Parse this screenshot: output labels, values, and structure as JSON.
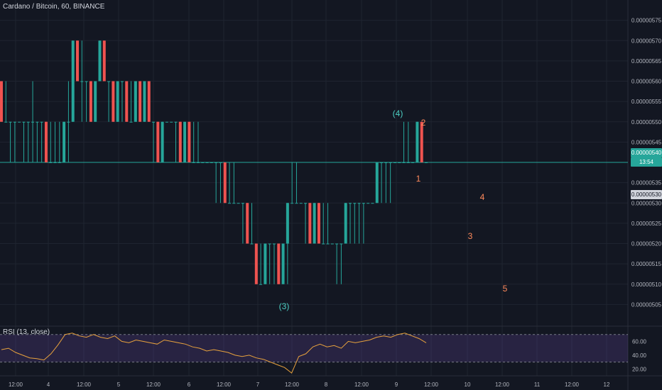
{
  "header": {
    "title": "Cardano / Bitcoin, 60, BINANCE"
  },
  "rsi": {
    "title": "RSI (13, close)"
  },
  "colors": {
    "background": "#131722",
    "grid": "#1f2430",
    "up": "#26a69a",
    "down": "#ef5350",
    "rsi_line": "#e8a23d",
    "rsi_band": "#7e57c2",
    "wave_teal": "#4dd0c4",
    "wave_orange": "#ff8a5c",
    "axis_text": "#b2b5be"
  },
  "price_labels": {
    "last_price": "0.00000540",
    "countdown": "13:54",
    "marker_price": "0.00000530"
  },
  "chart_data": [
    {
      "type": "candlestick",
      "title": "Cardano / Bitcoin, 60, BINANCE",
      "ylim": [
        5e-06,
        5.8e-06
      ],
      "y_ticks": [
        "0.00000505",
        "0.00000510",
        "0.00000515",
        "0.00000520",
        "0.00000525",
        "0.00000530",
        "0.00000535",
        "0.00000540",
        "0.00000545",
        "0.00000550",
        "0.00000555",
        "0.00000560",
        "0.00000565",
        "0.00000570",
        "0.00000575"
      ],
      "x_ticks": [
        "12:00",
        "4",
        "12:00",
        "5",
        "12:00",
        "6",
        "12:00",
        "7",
        "12:00",
        "8",
        "12:00",
        "9",
        "12:00",
        "10",
        "12:00",
        "11",
        "12:00",
        "12"
      ],
      "grid": true,
      "candles": [
        [
          5.6e-06,
          5.6e-06,
          5.5e-06,
          5.5e-06
        ],
        [
          5.5e-06,
          5.6e-06,
          5.5e-06,
          5.5e-06
        ],
        [
          5.5e-06,
          5.5e-06,
          5.4e-06,
          5.5e-06
        ],
        [
          5.5e-06,
          5.5e-06,
          5.4e-06,
          5.5e-06
        ],
        [
          5.5e-06,
          5.5e-06,
          5.5e-06,
          5.5e-06
        ],
        [
          5.5e-06,
          5.5e-06,
          5.4e-06,
          5.5e-06
        ],
        [
          5.5e-06,
          5.5e-06,
          5.4e-06,
          5.5e-06
        ],
        [
          5.5e-06,
          5.6e-06,
          5.4e-06,
          5.5e-06
        ],
        [
          5.5e-06,
          5.5e-06,
          5.4e-06,
          5.5e-06
        ],
        [
          5.5e-06,
          5.5e-06,
          5.4e-06,
          5.5e-06
        ],
        [
          5.5e-06,
          5.5e-06,
          5.4e-06,
          5.4e-06
        ],
        [
          5.4e-06,
          5.5e-06,
          5.4e-06,
          5.4e-06
        ],
        [
          5.4e-06,
          5.5e-06,
          5.4e-06,
          5.4e-06
        ],
        [
          5.4e-06,
          5.5e-06,
          5.4e-06,
          5.4e-06
        ],
        [
          5.4e-06,
          5.5e-06,
          5.4e-06,
          5.5e-06
        ],
        [
          5.5e-06,
          5.6e-06,
          5.4e-06,
          5.5e-06
        ],
        [
          5.5e-06,
          5.7e-06,
          5.5e-06,
          5.7e-06
        ],
        [
          5.7e-06,
          5.7e-06,
          5.6e-06,
          5.6e-06
        ],
        [
          5.6e-06,
          5.7e-06,
          5.5e-06,
          5.6e-06
        ],
        [
          5.6e-06,
          5.6e-06,
          5.5e-06,
          5.6e-06
        ],
        [
          5.6e-06,
          5.6e-06,
          5.5e-06,
          5.5e-06
        ],
        [
          5.5e-06,
          5.6e-06,
          5.5e-06,
          5.6e-06
        ],
        [
          5.6e-06,
          5.7e-06,
          5.6e-06,
          5.7e-06
        ],
        [
          5.7e-06,
          5.7e-06,
          5.6e-06,
          5.6e-06
        ],
        [
          5.6e-06,
          5.6e-06,
          5.5e-06,
          5.6e-06
        ],
        [
          5.6e-06,
          5.6e-06,
          5.5e-06,
          5.5e-06
        ],
        [
          5.5e-06,
          5.6e-06,
          5.5e-06,
          5.6e-06
        ],
        [
          5.6e-06,
          5.6e-06,
          5.5e-06,
          5.6e-06
        ],
        [
          5.6e-06,
          5.6e-06,
          5.5e-06,
          5.5e-06
        ],
        [
          5.5e-06,
          5.6e-06,
          5.5e-06,
          5.5e-06
        ],
        [
          5.5e-06,
          5.6e-06,
          5.5e-06,
          5.6e-06
        ],
        [
          5.6e-06,
          5.6e-06,
          5.5e-06,
          5.5e-06
        ],
        [
          5.5e-06,
          5.6e-06,
          5.5e-06,
          5.6e-06
        ],
        [
          5.6e-06,
          5.6e-06,
          5.5e-06,
          5.5e-06
        ],
        [
          5.5e-06,
          5.5e-06,
          5.4e-06,
          5.5e-06
        ],
        [
          5.5e-06,
          5.5e-06,
          5.4e-06,
          5.4e-06
        ],
        [
          5.4e-06,
          5.5e-06,
          5.4e-06,
          5.5e-06
        ],
        [
          5.5e-06,
          5.5e-06,
          5.5e-06,
          5.5e-06
        ],
        [
          5.5e-06,
          5.5e-06,
          5.5e-06,
          5.5e-06
        ],
        [
          5.5e-06,
          5.5e-06,
          5.4e-06,
          5.5e-06
        ],
        [
          5.5e-06,
          5.5e-06,
          5.4e-06,
          5.4e-06
        ],
        [
          5.4e-06,
          5.5e-06,
          5.4e-06,
          5.5e-06
        ],
        [
          5.5e-06,
          5.5e-06,
          5.4e-06,
          5.4e-06
        ],
        [
          5.4e-06,
          5.5e-06,
          5.4e-06,
          5.4e-06
        ],
        [
          5.4e-06,
          5.5e-06,
          5.4e-06,
          5.4e-06
        ],
        [
          5.4e-06,
          5.4e-06,
          5.4e-06,
          5.4e-06
        ],
        [
          5.4e-06,
          5.4e-06,
          5.4e-06,
          5.4e-06
        ],
        [
          5.4e-06,
          5.4e-06,
          5.4e-06,
          5.4e-06
        ],
        [
          5.4e-06,
          5.4e-06,
          5.3e-06,
          5.4e-06
        ],
        [
          5.4e-06,
          5.4e-06,
          5.3e-06,
          5.4e-06
        ],
        [
          5.4e-06,
          5.4e-06,
          5.3e-06,
          5.3e-06
        ],
        [
          5.3e-06,
          5.4e-06,
          5.3e-06,
          5.3e-06
        ],
        [
          5.3e-06,
          5.4e-06,
          5.3e-06,
          5.3e-06
        ],
        [
          5.3e-06,
          5.3e-06,
          5.3e-06,
          5.3e-06
        ],
        [
          5.3e-06,
          5.3e-06,
          5.2e-06,
          5.3e-06
        ],
        [
          5.3e-06,
          5.3e-06,
          5.2e-06,
          5.2e-06
        ],
        [
          5.2e-06,
          5.3e-06,
          5.2e-06,
          5.2e-06
        ],
        [
          5.2e-06,
          5.2e-06,
          5.1e-06,
          5.1e-06
        ],
        [
          5.1e-06,
          5.2e-06,
          5.1e-06,
          5.1e-06
        ],
        [
          5.1e-06,
          5.2e-06,
          5.1e-06,
          5.2e-06
        ],
        [
          5.2e-06,
          5.2e-06,
          5.1e-06,
          5.2e-06
        ],
        [
          5.2e-06,
          5.2e-06,
          5.1e-06,
          5.2e-06
        ],
        [
          5.2e-06,
          5.2e-06,
          5.1e-06,
          5.1e-06
        ],
        [
          5.1e-06,
          5.2e-06,
          5.1e-06,
          5.2e-06
        ],
        [
          5.2e-06,
          5.3e-06,
          5.1e-06,
          5.3e-06
        ],
        [
          5.3e-06,
          5.4e-06,
          5.3e-06,
          5.3e-06
        ],
        [
          5.3e-06,
          5.4e-06,
          5.3e-06,
          5.3e-06
        ],
        [
          5.3e-06,
          5.3e-06,
          5.3e-06,
          5.3e-06
        ],
        [
          5.3e-06,
          5.3e-06,
          5.2e-06,
          5.3e-06
        ],
        [
          5.3e-06,
          5.3e-06,
          5.2e-06,
          5.2e-06
        ],
        [
          5.2e-06,
          5.3e-06,
          5.2e-06,
          5.3e-06
        ],
        [
          5.3e-06,
          5.3e-06,
          5.2e-06,
          5.2e-06
        ],
        [
          5.2e-06,
          5.3e-06,
          5.2e-06,
          5.2e-06
        ],
        [
          5.2e-06,
          5.3e-06,
          5.2e-06,
          5.2e-06
        ],
        [
          5.2e-06,
          5.2e-06,
          5.2e-06,
          5.2e-06
        ],
        [
          5.2e-06,
          5.2e-06,
          5.1e-06,
          5.2e-06
        ],
        [
          5.2e-06,
          5.2e-06,
          5.1e-06,
          5.2e-06
        ],
        [
          5.2e-06,
          5.3e-06,
          5.2e-06,
          5.3e-06
        ],
        [
          5.3e-06,
          5.3e-06,
          5.2e-06,
          5.3e-06
        ],
        [
          5.3e-06,
          5.3e-06,
          5.2e-06,
          5.3e-06
        ],
        [
          5.3e-06,
          5.3e-06,
          5.2e-06,
          5.3e-06
        ],
        [
          5.3e-06,
          5.3e-06,
          5.2e-06,
          5.3e-06
        ],
        [
          5.3e-06,
          5.3e-06,
          5.3e-06,
          5.3e-06
        ],
        [
          5.3e-06,
          5.3e-06,
          5.3e-06,
          5.3e-06
        ],
        [
          5.3e-06,
          5.4e-06,
          5.3e-06,
          5.4e-06
        ],
        [
          5.4e-06,
          5.4e-06,
          5.3e-06,
          5.4e-06
        ],
        [
          5.4e-06,
          5.4e-06,
          5.3e-06,
          5.4e-06
        ],
        [
          5.4e-06,
          5.4e-06,
          5.3e-06,
          5.4e-06
        ],
        [
          5.4e-06,
          5.4e-06,
          5.4e-06,
          5.4e-06
        ],
        [
          5.4e-06,
          5.4e-06,
          5.4e-06,
          5.4e-06
        ],
        [
          5.4e-06,
          5.5e-06,
          5.4e-06,
          5.4e-06
        ],
        [
          5.4e-06,
          5.5e-06,
          5.4e-06,
          5.4e-06
        ],
        [
          5.4e-06,
          5.4e-06,
          5.4e-06,
          5.4e-06
        ],
        [
          5.4e-06,
          5.5e-06,
          5.4e-06,
          5.5e-06
        ],
        [
          5.5e-06,
          5.5e-06,
          5.4e-06,
          5.4e-06
        ],
        [
          5.4e-06,
          5.4e-06,
          5.4e-06,
          5.4e-06
        ]
      ]
    },
    {
      "type": "line",
      "title": "RSI (13, close)",
      "ylim": [
        10,
        80
      ],
      "y_ticks": [
        "60.00",
        "40.00",
        "20.00"
      ],
      "bands": [
        30,
        70
      ],
      "values": [
        48,
        50,
        44,
        40,
        36,
        35,
        33,
        42,
        55,
        70,
        72,
        68,
        66,
        70,
        66,
        64,
        68,
        60,
        58,
        62,
        60,
        58,
        56,
        62,
        60,
        58,
        56,
        52,
        50,
        46,
        48,
        46,
        44,
        40,
        38,
        40,
        36,
        34,
        30,
        26,
        22,
        14,
        38,
        42,
        52,
        56,
        52,
        54,
        50,
        60,
        58,
        60,
        62,
        66,
        68,
        66,
        70,
        72,
        68,
        64,
        58
      ]
    }
  ],
  "annotations": {
    "wave_3": "(3)",
    "wave_4": "(4)",
    "label_1": "1",
    "label_2": "2",
    "label_3": "3",
    "label_4": "4",
    "label_5": "5"
  }
}
